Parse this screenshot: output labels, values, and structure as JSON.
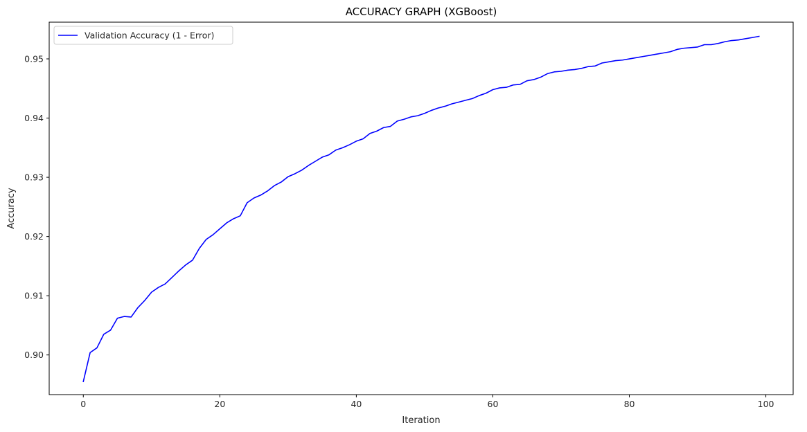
{
  "chart_data": {
    "type": "line",
    "title": "ACCURACY GRAPH (XGBoost)",
    "xlabel": "Iteration",
    "ylabel": "Accuracy",
    "xlim": [
      -5,
      104
    ],
    "ylim": [
      0.8933,
      0.9562
    ],
    "xticks": [
      0,
      20,
      40,
      60,
      80,
      100
    ],
    "yticks": [
      0.9,
      0.91,
      0.92,
      0.93,
      0.94,
      0.95
    ],
    "xtick_labels": [
      "0",
      "20",
      "40",
      "60",
      "80",
      "100"
    ],
    "ytick_labels": [
      "0.90",
      "0.91",
      "0.92",
      "0.93",
      "0.94",
      "0.95"
    ],
    "grid": false,
    "legend_position": "upper-left",
    "series": [
      {
        "name": "Validation Accuracy (1 - Error)",
        "color": "#0000ff",
        "x": [
          0,
          1,
          2,
          3,
          4,
          5,
          6,
          7,
          8,
          9,
          10,
          11,
          12,
          13,
          14,
          15,
          16,
          17,
          18,
          19,
          20,
          21,
          22,
          23,
          24,
          25,
          26,
          27,
          28,
          29,
          30,
          31,
          32,
          33,
          34,
          35,
          36,
          37,
          38,
          39,
          40,
          41,
          42,
          43,
          44,
          45,
          46,
          47,
          48,
          49,
          50,
          51,
          52,
          53,
          54,
          55,
          56,
          57,
          58,
          59,
          60,
          61,
          62,
          63,
          64,
          65,
          66,
          67,
          68,
          69,
          70,
          71,
          72,
          73,
          74,
          75,
          76,
          77,
          78,
          79,
          80,
          81,
          82,
          83,
          84,
          85,
          86,
          87,
          88,
          89,
          90,
          91,
          92,
          93,
          94,
          95,
          96,
          97,
          98,
          99
        ],
        "y": [
          0.8955,
          0.9004,
          0.9012,
          0.9035,
          0.9042,
          0.9062,
          0.9065,
          0.9064,
          0.908,
          0.9092,
          0.9106,
          0.9114,
          0.912,
          0.9131,
          0.9142,
          0.9152,
          0.916,
          0.918,
          0.9195,
          0.9203,
          0.9213,
          0.9223,
          0.923,
          0.9235,
          0.9257,
          0.9265,
          0.927,
          0.9277,
          0.9286,
          0.9292,
          0.9301,
          0.9306,
          0.9312,
          0.932,
          0.9327,
          0.9334,
          0.9338,
          0.9346,
          0.935,
          0.9355,
          0.9361,
          0.9365,
          0.9374,
          0.9378,
          0.9384,
          0.9386,
          0.9395,
          0.9398,
          0.9402,
          0.9404,
          0.9408,
          0.9413,
          0.9417,
          0.942,
          0.9424,
          0.9427,
          0.943,
          0.9433,
          0.9438,
          0.9442,
          0.9448,
          0.9451,
          0.9452,
          0.9456,
          0.9457,
          0.9463,
          0.9465,
          0.9469,
          0.9475,
          0.9478,
          0.9479,
          0.9481,
          0.9482,
          0.9484,
          0.9487,
          0.9488,
          0.9493,
          0.9495,
          0.9497,
          0.9498,
          0.95,
          0.9502,
          0.9504,
          0.9506,
          0.9508,
          0.951,
          0.9512,
          0.9516,
          0.9518,
          0.9519,
          0.952,
          0.9524,
          0.9524,
          0.9526,
          0.9529,
          0.9531,
          0.9532,
          0.9534,
          0.9536,
          0.9538
        ]
      }
    ]
  }
}
